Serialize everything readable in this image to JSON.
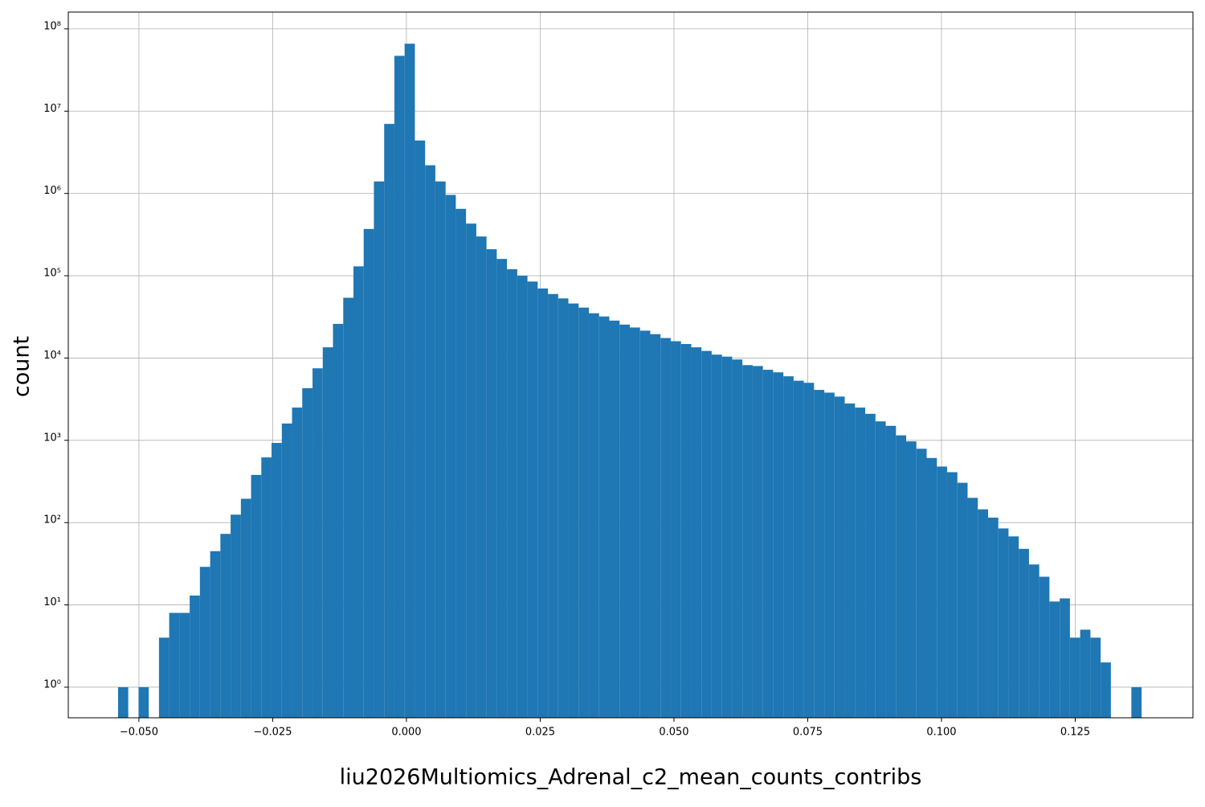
{
  "chart_data": {
    "type": "histogram",
    "xlabel": "liu2026Multiomics_Adrenal_c2_mean_counts_contribs",
    "ylabel": "count",
    "color": "#1f77b4",
    "grid": true,
    "ylog": true,
    "bins": [
      -0.0539,
      -0.05199,
      -0.05007,
      -0.04816,
      -0.04625,
      -0.04434,
      -0.04242,
      -0.04051,
      -0.0386,
      -0.03668,
      -0.03477,
      -0.03286,
      -0.03094,
      -0.02903,
      -0.02712,
      -0.02521,
      -0.02329,
      -0.02138,
      -0.01947,
      -0.01755,
      -0.01564,
      -0.01373,
      -0.01181,
      -0.0099,
      -0.00799,
      -0.00608,
      -0.00416,
      -0.00225,
      -0.00034,
      0.00158,
      0.00349,
      0.0054,
      0.00732,
      0.00923,
      0.01114,
      0.01306,
      0.01497,
      0.01688,
      0.01879,
      0.02071,
      0.02262,
      0.02453,
      0.02645,
      0.02836,
      0.03027,
      0.03219,
      0.0341,
      0.03601,
      0.03792,
      0.03984,
      0.04175,
      0.04366,
      0.04558,
      0.04749,
      0.0494,
      0.05132,
      0.05323,
      0.05514,
      0.05705,
      0.05897,
      0.06088,
      0.06279,
      0.06471,
      0.06662,
      0.06853,
      0.07045,
      0.07236,
      0.07427,
      0.07618,
      0.0781,
      0.08001,
      0.08192,
      0.08384,
      0.08575,
      0.08766,
      0.08958,
      0.09149,
      0.0934,
      0.09531,
      0.09723,
      0.09914,
      0.10105,
      0.10297,
      0.10488,
      0.10679,
      0.10871,
      0.11062,
      0.11253,
      0.11444,
      0.11636,
      0.11827,
      0.12018,
      0.1221,
      0.12401,
      0.12592,
      0.12784,
      0.12975,
      0.13166,
      0.13357,
      0.13549,
      0.1374
    ],
    "values": [
      1,
      0,
      1,
      0,
      4,
      8,
      8,
      13,
      29,
      45,
      73,
      125,
      195,
      380,
      620,
      930,
      1600,
      2500,
      4300,
      7500,
      13500,
      26000,
      54000,
      130000,
      370000,
      1400000,
      7000000,
      47000000,
      66000000,
      4400000,
      2200000,
      1400000,
      960000,
      650000,
      430000,
      300000,
      210000,
      160000,
      120000,
      100000,
      85000,
      70000,
      60000,
      53000,
      46000,
      41000,
      35000,
      32000,
      28500,
      25500,
      23500,
      21500,
      19500,
      17500,
      16000,
      14800,
      13500,
      12200,
      11000,
      10400,
      9600,
      8200,
      8000,
      7200,
      6700,
      6000,
      5300,
      5000,
      4100,
      3800,
      3400,
      2800,
      2500,
      2100,
      1700,
      1500,
      1150,
      970,
      790,
      610,
      480,
      410,
      305,
      200,
      145,
      115,
      85,
      68,
      48,
      31,
      22,
      11,
      12,
      4,
      5,
      4,
      2,
      0,
      0,
      1
    ],
    "xlim": [
      -0.0632,
      0.147
    ],
    "xticks": [
      {
        "value": -0.05,
        "label": "−0.050"
      },
      {
        "value": -0.025,
        "label": "−0.025"
      },
      {
        "value": 0,
        "label": "0.000"
      },
      {
        "value": 0.025,
        "label": "0.025"
      },
      {
        "value": 0.05,
        "label": "0.050"
      },
      {
        "value": 0.075,
        "label": "0.075"
      },
      {
        "value": 0.1,
        "label": "0.100"
      },
      {
        "value": 0.125,
        "label": "0.125"
      }
    ],
    "ylim": [
      0.425,
      160000000
    ],
    "yticks": [
      {
        "value": 1,
        "label": "10⁰"
      },
      {
        "value": 10,
        "label": "10¹"
      },
      {
        "value": 100,
        "label": "10²"
      },
      {
        "value": 1000,
        "label": "10³"
      },
      {
        "value": 10000,
        "label": "10⁴"
      },
      {
        "value": 100000,
        "label": "10⁵"
      },
      {
        "value": 1000000,
        "label": "10⁶"
      },
      {
        "value": 10000000,
        "label": "10⁷"
      },
      {
        "value": 100000000,
        "label": "10⁸"
      }
    ]
  }
}
